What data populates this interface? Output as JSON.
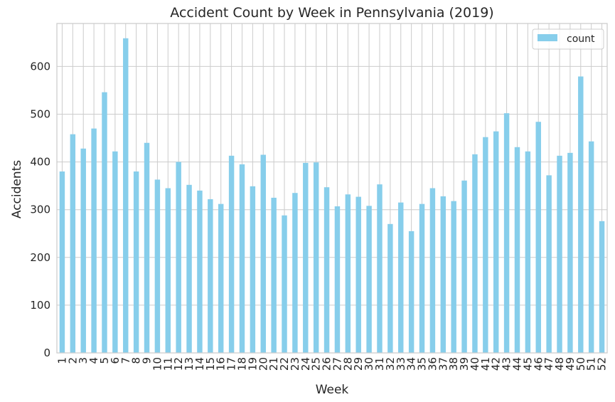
{
  "chart_data": {
    "type": "bar",
    "title": "Accident Count by Week in Pennsylvania (2019)",
    "xlabel": "Week",
    "ylabel": "Accidents",
    "ylim": [
      0,
      690
    ],
    "yticks": [
      0,
      100,
      200,
      300,
      400,
      500,
      600
    ],
    "grid": true,
    "legend_position": "top-right",
    "bar_color": "#87CEEB",
    "categories": [
      "1",
      "2",
      "3",
      "4",
      "5",
      "6",
      "7",
      "8",
      "9",
      "10",
      "11",
      "12",
      "13",
      "14",
      "15",
      "16",
      "17",
      "18",
      "19",
      "20",
      "21",
      "22",
      "23",
      "24",
      "25",
      "26",
      "27",
      "28",
      "29",
      "30",
      "31",
      "32",
      "33",
      "34",
      "35",
      "36",
      "37",
      "38",
      "39",
      "40",
      "41",
      "42",
      "43",
      "44",
      "45",
      "46",
      "47",
      "48",
      "49",
      "50",
      "51",
      "52"
    ],
    "series": [
      {
        "name": "count",
        "values": [
          380,
          458,
          428,
          470,
          546,
          422,
          659,
          380,
          440,
          363,
          345,
          400,
          352,
          340,
          322,
          312,
          413,
          395,
          349,
          415,
          325,
          288,
          335,
          398,
          399,
          347,
          307,
          332,
          327,
          308,
          353,
          270,
          315,
          255,
          312,
          345,
          328,
          318,
          361,
          416,
          452,
          464,
          502,
          431,
          422,
          484,
          372,
          413,
          419,
          579,
          443,
          276
        ]
      }
    ]
  }
}
